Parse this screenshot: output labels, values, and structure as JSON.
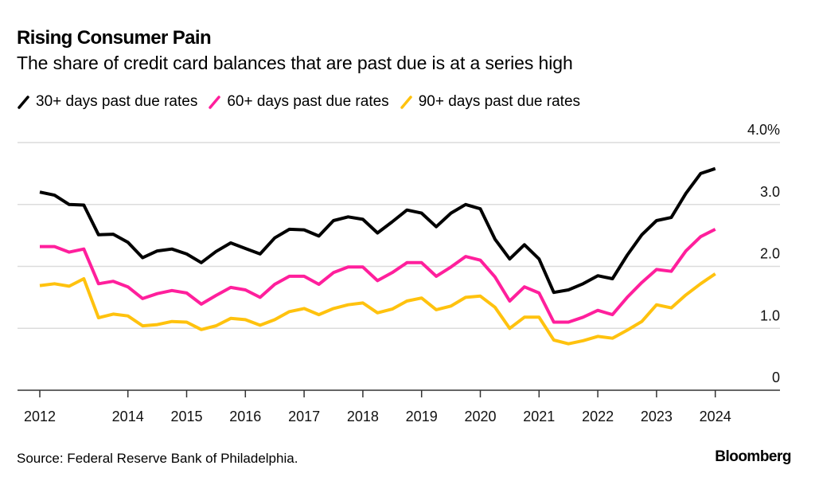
{
  "header": {
    "title": "Rising Consumer Pain",
    "subtitle": "The share of credit card balances that are past due is at a series high"
  },
  "footer": {
    "source": "Source: Federal Reserve Bank of Philadelphia.",
    "brand": "Bloomberg"
  },
  "chart_data": {
    "type": "line",
    "title": "Rising Consumer Pain",
    "subtitle": "The share of credit card balances that are past due is at a series high",
    "xlabel": "",
    "ylabel": "",
    "x_start": "2012 Q3",
    "x_frequency": "quarterly",
    "x": [
      "2012Q3",
      "2012Q4",
      "2013Q1",
      "2013Q2",
      "2013Q3",
      "2013Q4",
      "2014Q1",
      "2014Q2",
      "2014Q3",
      "2014Q4",
      "2015Q1",
      "2015Q2",
      "2015Q3",
      "2015Q4",
      "2016Q1",
      "2016Q2",
      "2016Q3",
      "2016Q4",
      "2017Q1",
      "2017Q2",
      "2017Q3",
      "2017Q4",
      "2018Q1",
      "2018Q2",
      "2018Q3",
      "2018Q4",
      "2019Q1",
      "2019Q2",
      "2019Q3",
      "2019Q4",
      "2020Q1",
      "2020Q2",
      "2020Q3",
      "2020Q4",
      "2021Q1",
      "2021Q2",
      "2021Q3",
      "2021Q4",
      "2022Q1",
      "2022Q2",
      "2022Q3",
      "2022Q4",
      "2023Q1",
      "2023Q2",
      "2023Q3",
      "2023Q4",
      "2024Q1"
    ],
    "x_ticks": [
      {
        "label": "2012",
        "at": "2012Q3"
      },
      {
        "label": "2014",
        "at": "2014Q1"
      },
      {
        "label": "2015",
        "at": "2015Q1"
      },
      {
        "label": "2016",
        "at": "2016Q1"
      },
      {
        "label": "2017",
        "at": "2017Q1"
      },
      {
        "label": "2018",
        "at": "2018Q1"
      },
      {
        "label": "2019",
        "at": "2019Q1"
      },
      {
        "label": "2020",
        "at": "2020Q1"
      },
      {
        "label": "2021",
        "at": "2021Q1"
      },
      {
        "label": "2022",
        "at": "2022Q1"
      },
      {
        "label": "2023",
        "at": "2023Q1"
      },
      {
        "label": "2024",
        "at": "2024Q1"
      }
    ],
    "y_ticks": [
      {
        "value": 0,
        "label": "0"
      },
      {
        "value": 1,
        "label": "1.0"
      },
      {
        "value": 2,
        "label": "2.0"
      },
      {
        "value": 3,
        "label": "3.0"
      },
      {
        "value": 4,
        "label": "4.0%"
      }
    ],
    "ylim": [
      0,
      4
    ],
    "grid": true,
    "y_axis_side": "right",
    "legend_position": "top-left",
    "series": [
      {
        "name": "30+ days past due rates",
        "color": "#000000",
        "values": [
          3.2,
          3.15,
          3.0,
          2.99,
          2.51,
          2.52,
          2.39,
          2.14,
          2.25,
          2.28,
          2.2,
          2.06,
          2.24,
          2.38,
          2.29,
          2.2,
          2.46,
          2.6,
          2.59,
          2.49,
          2.74,
          2.8,
          2.76,
          2.54,
          2.72,
          2.91,
          2.86,
          2.64,
          2.86,
          3.0,
          2.93,
          2.44,
          2.12,
          2.35,
          2.12,
          1.58,
          1.62,
          1.72,
          1.85,
          1.8,
          2.18,
          2.51,
          2.74,
          2.79,
          3.18,
          3.5,
          3.58
        ]
      },
      {
        "name": "60+ days past due rates",
        "color": "#ff1f9c",
        "values": [
          2.32,
          2.32,
          2.23,
          2.28,
          1.72,
          1.76,
          1.67,
          1.48,
          1.56,
          1.61,
          1.57,
          1.39,
          1.53,
          1.66,
          1.62,
          1.5,
          1.71,
          1.84,
          1.84,
          1.71,
          1.9,
          1.99,
          1.99,
          1.77,
          1.9,
          2.06,
          2.06,
          1.84,
          1.99,
          2.16,
          2.1,
          1.83,
          1.44,
          1.67,
          1.57,
          1.1,
          1.1,
          1.18,
          1.29,
          1.22,
          1.5,
          1.74,
          1.95,
          1.92,
          2.25,
          2.48,
          2.6
        ]
      },
      {
        "name": "90+ days past due rates",
        "color": "#ffc20e",
        "values": [
          1.69,
          1.72,
          1.68,
          1.8,
          1.17,
          1.23,
          1.2,
          1.04,
          1.06,
          1.11,
          1.1,
          0.98,
          1.04,
          1.16,
          1.14,
          1.05,
          1.14,
          1.27,
          1.32,
          1.22,
          1.32,
          1.38,
          1.41,
          1.25,
          1.31,
          1.44,
          1.49,
          1.3,
          1.36,
          1.5,
          1.52,
          1.34,
          1.0,
          1.18,
          1.18,
          0.81,
          0.75,
          0.8,
          0.87,
          0.84,
          0.97,
          1.11,
          1.38,
          1.33,
          1.54,
          1.72,
          1.88
        ]
      }
    ]
  }
}
